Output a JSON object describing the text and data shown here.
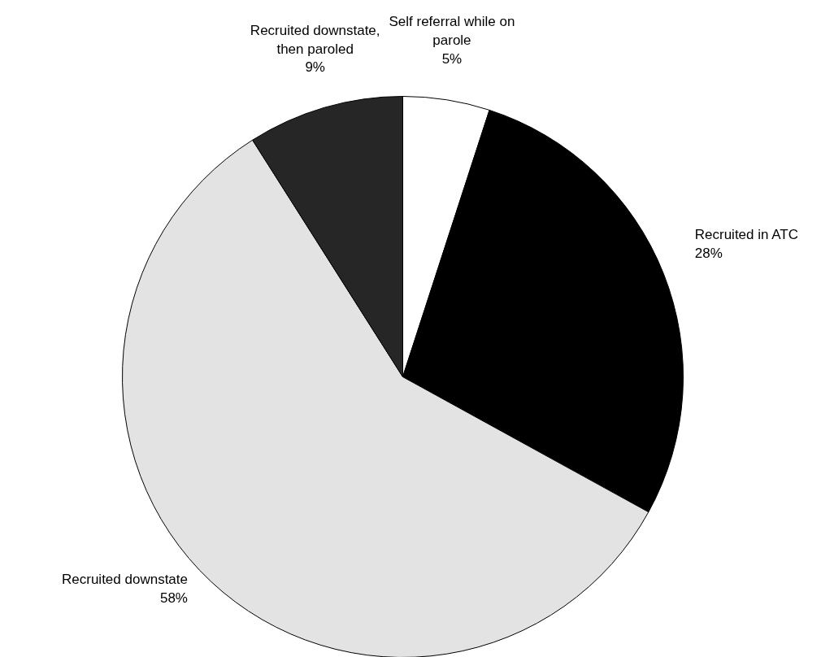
{
  "chart_data": {
    "type": "pie",
    "categories": [
      "Self referral while on parole",
      "Recruited in ATC",
      "Recruited downstate",
      "Recruited downstate, then paroled"
    ],
    "values": [
      5,
      28,
      58,
      9
    ],
    "value_labels": [
      "5%",
      "28%",
      "58%",
      "9%"
    ],
    "colors": [
      "#ffffff",
      "#000000",
      "#e3e3e3",
      "#262626"
    ]
  }
}
